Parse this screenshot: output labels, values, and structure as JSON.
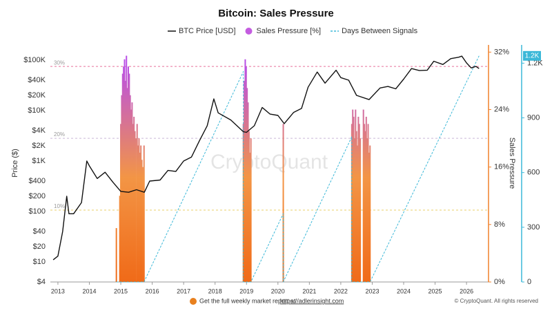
{
  "chart_data": {
    "type": "line",
    "title": "Bitcoin: Sales Pressure",
    "watermark": "CryptoQuant",
    "footer_text": "Get the full weekly market report at",
    "footer_link": "https://adlerinsight.com",
    "copyright": "© CryptoQuant. All rights reserved",
    "ylabel": "Price ($)",
    "y2label": "Sales Pressure",
    "log_scale": true,
    "xlim": [
      2012.76,
      2026.7
    ],
    "xticks": [
      2013,
      2014,
      2015,
      2016,
      2017,
      2018,
      2019,
      2020,
      2021,
      2022,
      2023,
      2024,
      2025,
      2026
    ],
    "ylim": [
      4,
      200000
    ],
    "yticks": [
      {
        "value": 4,
        "label": "$4"
      },
      {
        "value": 10,
        "label": "$10"
      },
      {
        "value": 20,
        "label": "$20"
      },
      {
        "value": 40,
        "label": "$40"
      },
      {
        "value": 100,
        "label": "$100"
      },
      {
        "value": 200,
        "label": "$200"
      },
      {
        "value": 400,
        "label": "$400"
      },
      {
        "value": 1000,
        "label": "$1K"
      },
      {
        "value": 2000,
        "label": "$2K"
      },
      {
        "value": 4000,
        "label": "$4K"
      },
      {
        "value": 10000,
        "label": "$10K"
      },
      {
        "value": 20000,
        "label": "$20K"
      },
      {
        "value": 40000,
        "label": "$40K"
      },
      {
        "value": 100000,
        "label": "$100K"
      }
    ],
    "y2lim": [
      0,
      33
    ],
    "y2ticks": [
      {
        "value": 0,
        "label": "0%"
      },
      {
        "value": 8,
        "label": "8%"
      },
      {
        "value": 16,
        "label": "16%"
      },
      {
        "value": 24,
        "label": "24%"
      },
      {
        "value": 32,
        "label": "32%"
      }
    ],
    "y3lim": [
      0,
      1300
    ],
    "y3ticks": [
      0,
      300,
      600,
      900,
      {
        "value": 1200,
        "label": "1.2K"
      }
    ],
    "y2color": "#f0802a",
    "y3color": "#3bb8d8",
    "reference_lines": [
      {
        "value": 10,
        "label": "10%",
        "color": "#e8cf6a"
      },
      {
        "value": 20,
        "label": "20%",
        "color": "#c9b8d6"
      },
      {
        "value": 30,
        "label": "30%",
        "color": "#e8709a"
      }
    ],
    "bar_gradient": [
      "#f06a18",
      "#f39545",
      "#b94fe6"
    ],
    "series": [
      {
        "name": "BTC Price [USD]",
        "type": "line",
        "axis": "y",
        "color": "#111111",
        "x": [
          2012.85,
          2013.0,
          2013.15,
          2013.28,
          2013.35,
          2013.5,
          2013.75,
          2013.92,
          2014.0,
          2014.25,
          2014.5,
          2014.75,
          2015.0,
          2015.25,
          2015.5,
          2015.75,
          2015.92,
          2016.25,
          2016.5,
          2016.75,
          2017.0,
          2017.25,
          2017.5,
          2017.75,
          2017.96,
          2018.1,
          2018.5,
          2018.9,
          2019.0,
          2019.25,
          2019.5,
          2019.75,
          2020.0,
          2020.2,
          2020.5,
          2020.75,
          2020.96,
          2021.25,
          2021.5,
          2021.85,
          2022.0,
          2022.25,
          2022.5,
          2022.9,
          2023.25,
          2023.5,
          2023.75,
          2024.0,
          2024.25,
          2024.5,
          2024.75,
          2024.96,
          2025.25,
          2025.5,
          2025.75,
          2025.85,
          2026.0,
          2026.15,
          2026.3,
          2026.4
        ],
        "values": [
          11,
          13,
          40,
          200,
          90,
          90,
          150,
          1000,
          800,
          450,
          600,
          380,
          250,
          240,
          270,
          240,
          400,
          420,
          650,
          620,
          1000,
          1200,
          2500,
          5000,
          17000,
          9000,
          6500,
          3800,
          3700,
          5000,
          11500,
          8500,
          8000,
          5500,
          9200,
          11000,
          29000,
          58000,
          35000,
          63000,
          45000,
          40000,
          20000,
          16500,
          28000,
          30000,
          27000,
          42000,
          68000,
          62000,
          63000,
          95000,
          82000,
          107000,
          114000,
          120000,
          88000,
          70000,
          75000,
          68000
        ]
      },
      {
        "name": "Sales Pressure [%]",
        "type": "bar",
        "axis": "y2",
        "color": "#c45ce0",
        "x": [
          2014.86,
          2014.97,
          2015.0,
          2015.03,
          2015.06,
          2015.09,
          2015.12,
          2015.15,
          2015.18,
          2015.21,
          2015.24,
          2015.27,
          2015.3,
          2015.33,
          2015.36,
          2015.39,
          2015.42,
          2015.45,
          2015.48,
          2015.52,
          2015.55,
          2015.58,
          2015.61,
          2015.64,
          2015.67,
          2015.7,
          2015.74,
          2018.9,
          2018.93,
          2018.96,
          2018.99,
          2019.02,
          2019.05,
          2019.08,
          2019.11,
          2019.14,
          2020.17,
          2022.35,
          2022.38,
          2022.41,
          2022.44,
          2022.47,
          2022.5,
          2022.53,
          2022.56,
          2022.59,
          2022.62,
          2022.72,
          2022.75,
          2022.78,
          2022.81,
          2022.84,
          2022.87,
          2022.9,
          2022.93
        ],
        "values": [
          7.5,
          12,
          22,
          26,
          29,
          30,
          31,
          28,
          31.5,
          27,
          30,
          29,
          26,
          24,
          25,
          22,
          23,
          21,
          20,
          22,
          19,
          20,
          18,
          19,
          17,
          16,
          19,
          22,
          28,
          31,
          30,
          27,
          25,
          21,
          18,
          20,
          22,
          22,
          24,
          23,
          20,
          24,
          21,
          19,
          23,
          22,
          20,
          24,
          22,
          21,
          23,
          20,
          22,
          18,
          19
        ]
      },
      {
        "name": "Days Between Signals",
        "type": "line",
        "axis": "y3",
        "color": "#3bb8d8",
        "dashed": true,
        "x": [
          2014.86,
          2015.74,
          2018.9,
          2018.9,
          2019.14,
          2020.17,
          2020.17,
          2022.35,
          2022.35,
          2022.93,
          2026.4
        ],
        "values": [
          0,
          0,
          1154,
          0,
          0,
          375,
          0,
          796,
          0,
          0,
          1240
        ],
        "value_labels": [
          null,
          null,
          null,
          null,
          null,
          null,
          null,
          null,
          null,
          null,
          "1.2K"
        ]
      }
    ]
  }
}
